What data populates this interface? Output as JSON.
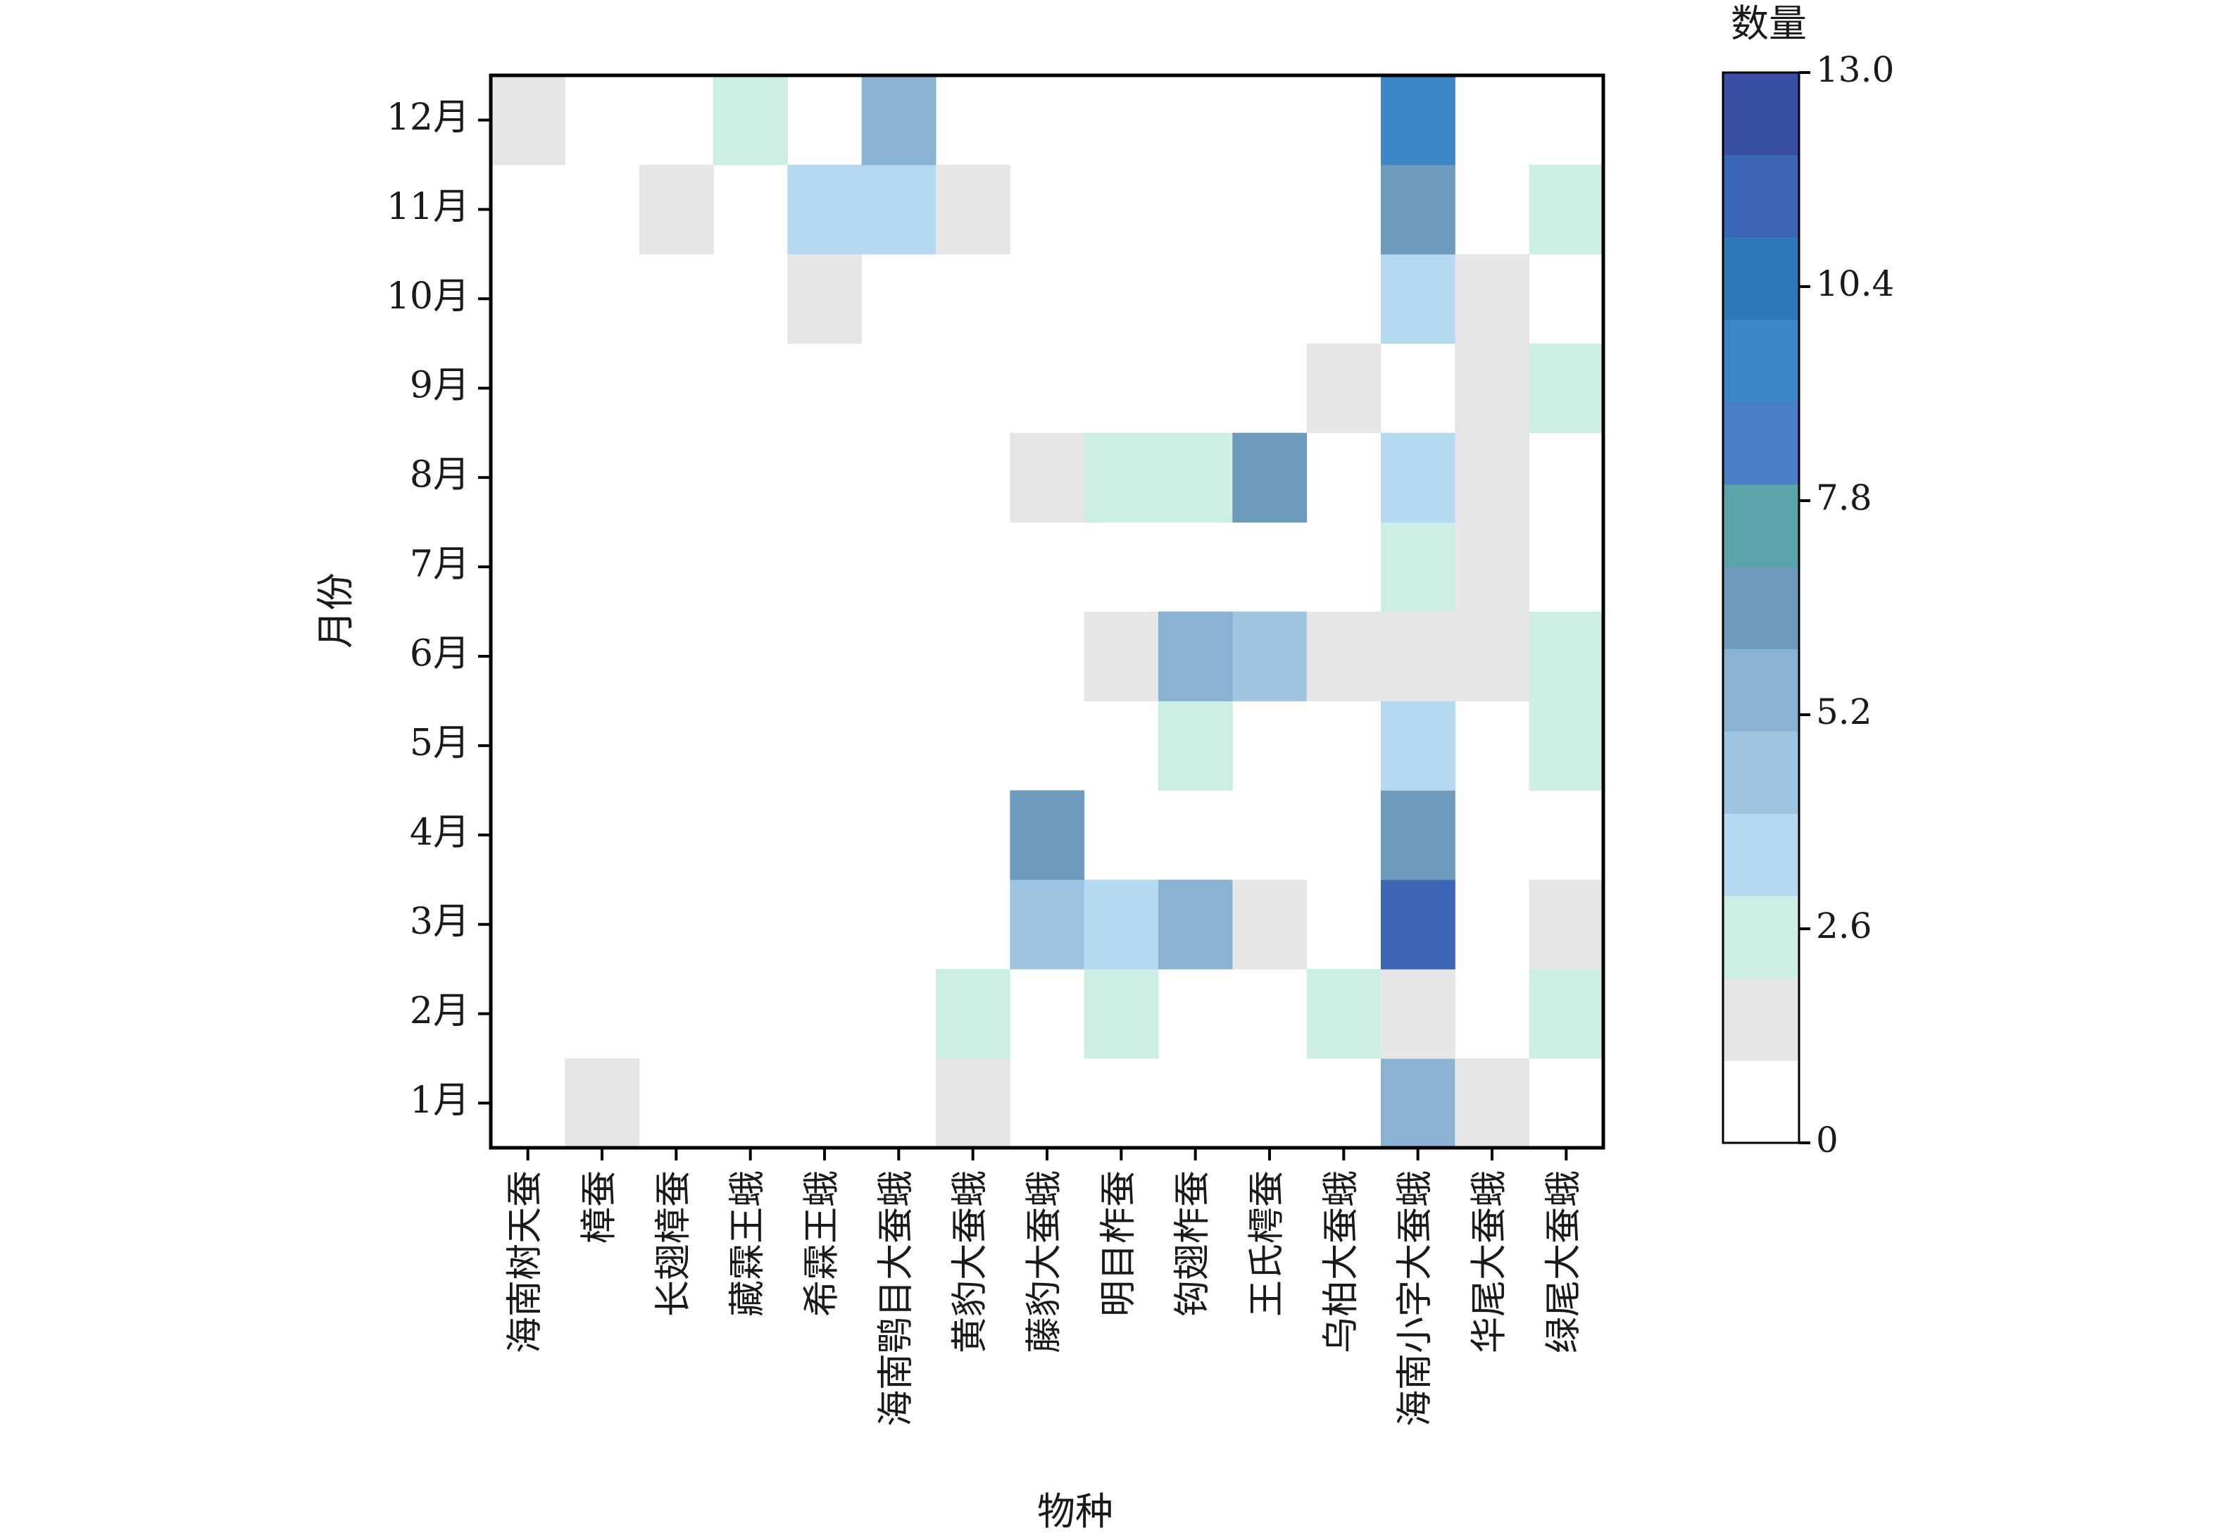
{
  "chart_data": {
    "type": "heatmap",
    "xlabel": "物种",
    "ylabel": "月份",
    "colorbar": {
      "title": "数量",
      "range": [
        0,
        13.0
      ],
      "ticks": [
        "13.0",
        "10.4",
        "7.8",
        "5.2",
        "2.6",
        "0"
      ]
    },
    "x_categories": [
      "海南树天蚕",
      "樟蚕",
      "长翅樟蚕",
      "藏霖王蛾",
      "希霖王蛾",
      "海南鹗目大蚕蛾",
      "黄豹大蚕蛾",
      "藤豹大蚕蛾",
      "明目柞蚕",
      "钩翅柞蚕",
      "王氏樗蚕",
      "乌柏大蚕蛾",
      "海南小字大蚕蛾",
      "华尾大蚕蛾",
      "绿尾大蚕蛾"
    ],
    "y_categories": [
      "1月",
      "2月",
      "3月",
      "4月",
      "5月",
      "6月",
      "7月",
      "8月",
      "9月",
      "10月",
      "11月",
      "12月"
    ],
    "values": [
      [
        0,
        0,
        0,
        0,
        0,
        0,
        0,
        0,
        0,
        0,
        0,
        1
      ],
      [
        1,
        0,
        0,
        0,
        0,
        0,
        0,
        0,
        0,
        0,
        0,
        0
      ],
      [
        0,
        0,
        0,
        0,
        0,
        0,
        0,
        0,
        0,
        0,
        1,
        0
      ],
      [
        0,
        0,
        0,
        0,
        0,
        0,
        0,
        0,
        0,
        0,
        0,
        2
      ],
      [
        0,
        0,
        0,
        0,
        0,
        0,
        0,
        0,
        0,
        1,
        3,
        0
      ],
      [
        0,
        0,
        0,
        0,
        0,
        0,
        0,
        0,
        0,
        0,
        3,
        5
      ],
      [
        1,
        2,
        0,
        0,
        0,
        0,
        0,
        0,
        0,
        0,
        1,
        0
      ],
      [
        0,
        0,
        4,
        7,
        0,
        0,
        0,
        1,
        0,
        0,
        0,
        0
      ],
      [
        0,
        2,
        3,
        0,
        0,
        1,
        0,
        2,
        0,
        0,
        0,
        0
      ],
      [
        0,
        0,
        5,
        0,
        2,
        5,
        0,
        2,
        0,
        0,
        0,
        0
      ],
      [
        0,
        0,
        1,
        0,
        0,
        4,
        0,
        7,
        0,
        0,
        0,
        0
      ],
      [
        0,
        2,
        0,
        0,
        0,
        1,
        0,
        0,
        1,
        0,
        0,
        0
      ],
      [
        5,
        1,
        12,
        6,
        3,
        1,
        2,
        3,
        0,
        3,
        6,
        10
      ],
      [
        1,
        0,
        0,
        0,
        0,
        1,
        1,
        1,
        1,
        1,
        0,
        0
      ],
      [
        0,
        2,
        1,
        0,
        2,
        2,
        0,
        0,
        2,
        0,
        2,
        0
      ]
    ],
    "color_stops": [
      "#ffffff",
      "#e6e6e6",
      "#cdeee3",
      "#b6d9f2",
      "#9fc4e2",
      "#8ab2d2",
      "#6f9bbd",
      "#5aa3a8",
      "#4a7fc7",
      "#3d87c9",
      "#2f78b8",
      "#3c66b6",
      "#3a4fa4"
    ]
  }
}
